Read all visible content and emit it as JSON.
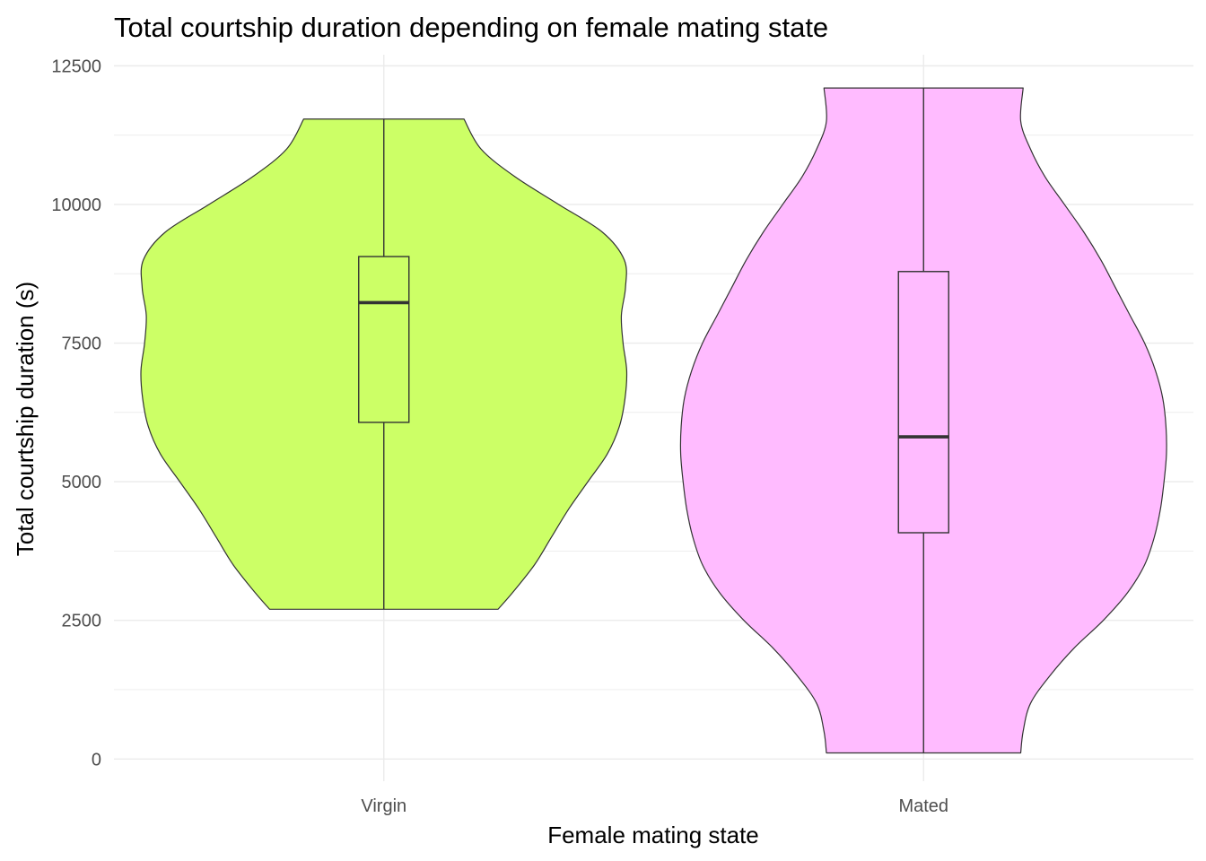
{
  "chart_data": {
    "type": "violin",
    "title": "Total courtship duration depending on female mating state",
    "xlabel": "Female mating state",
    "ylabel": "Total courtship duration (s)",
    "ylim": [
      -400,
      12700
    ],
    "yticks": [
      0,
      2500,
      5000,
      7500,
      10000,
      12500
    ],
    "yticklabels": [
      "0",
      "2500",
      "5000",
      "7500",
      "10000",
      "12500"
    ],
    "grid": true,
    "categories": [
      "Virgin",
      "Mated"
    ],
    "series": [
      {
        "category": "Virgin",
        "color": "#ccff66",
        "min": 2700,
        "q1": 6070,
        "median": 8230,
        "q3": 9060,
        "max": 11540,
        "density": [
          [
            2700,
            0.47
          ],
          [
            3000,
            0.53
          ],
          [
            3500,
            0.62
          ],
          [
            4000,
            0.69
          ],
          [
            4500,
            0.76
          ],
          [
            5000,
            0.84
          ],
          [
            5500,
            0.92
          ],
          [
            6000,
            0.97
          ],
          [
            6500,
            0.993
          ],
          [
            7000,
            1.0
          ],
          [
            7500,
            0.985
          ],
          [
            8000,
            0.978
          ],
          [
            8500,
            0.995
          ],
          [
            9000,
            0.99
          ],
          [
            9500,
            0.9
          ],
          [
            10000,
            0.72
          ],
          [
            10500,
            0.54
          ],
          [
            11000,
            0.4
          ],
          [
            11540,
            0.33
          ]
        ]
      },
      {
        "category": "Mated",
        "color": "#ffbbff",
        "min": 110,
        "q1": 4080,
        "median": 5810,
        "q3": 8790,
        "max": 12100,
        "density": [
          [
            110,
            0.4
          ],
          [
            500,
            0.41
          ],
          [
            1000,
            0.44
          ],
          [
            1500,
            0.52
          ],
          [
            2000,
            0.62
          ],
          [
            2500,
            0.74
          ],
          [
            3000,
            0.84
          ],
          [
            3500,
            0.91
          ],
          [
            4000,
            0.95
          ],
          [
            4500,
            0.975
          ],
          [
            5000,
            0.99
          ],
          [
            5500,
            1.0
          ],
          [
            6000,
            0.998
          ],
          [
            6500,
            0.985
          ],
          [
            7000,
            0.955
          ],
          [
            7500,
            0.91
          ],
          [
            8000,
            0.85
          ],
          [
            8500,
            0.79
          ],
          [
            9000,
            0.73
          ],
          [
            9500,
            0.66
          ],
          [
            10000,
            0.58
          ],
          [
            10500,
            0.5
          ],
          [
            11000,
            0.44
          ],
          [
            11500,
            0.4
          ],
          [
            12100,
            0.41
          ]
        ]
      }
    ]
  }
}
